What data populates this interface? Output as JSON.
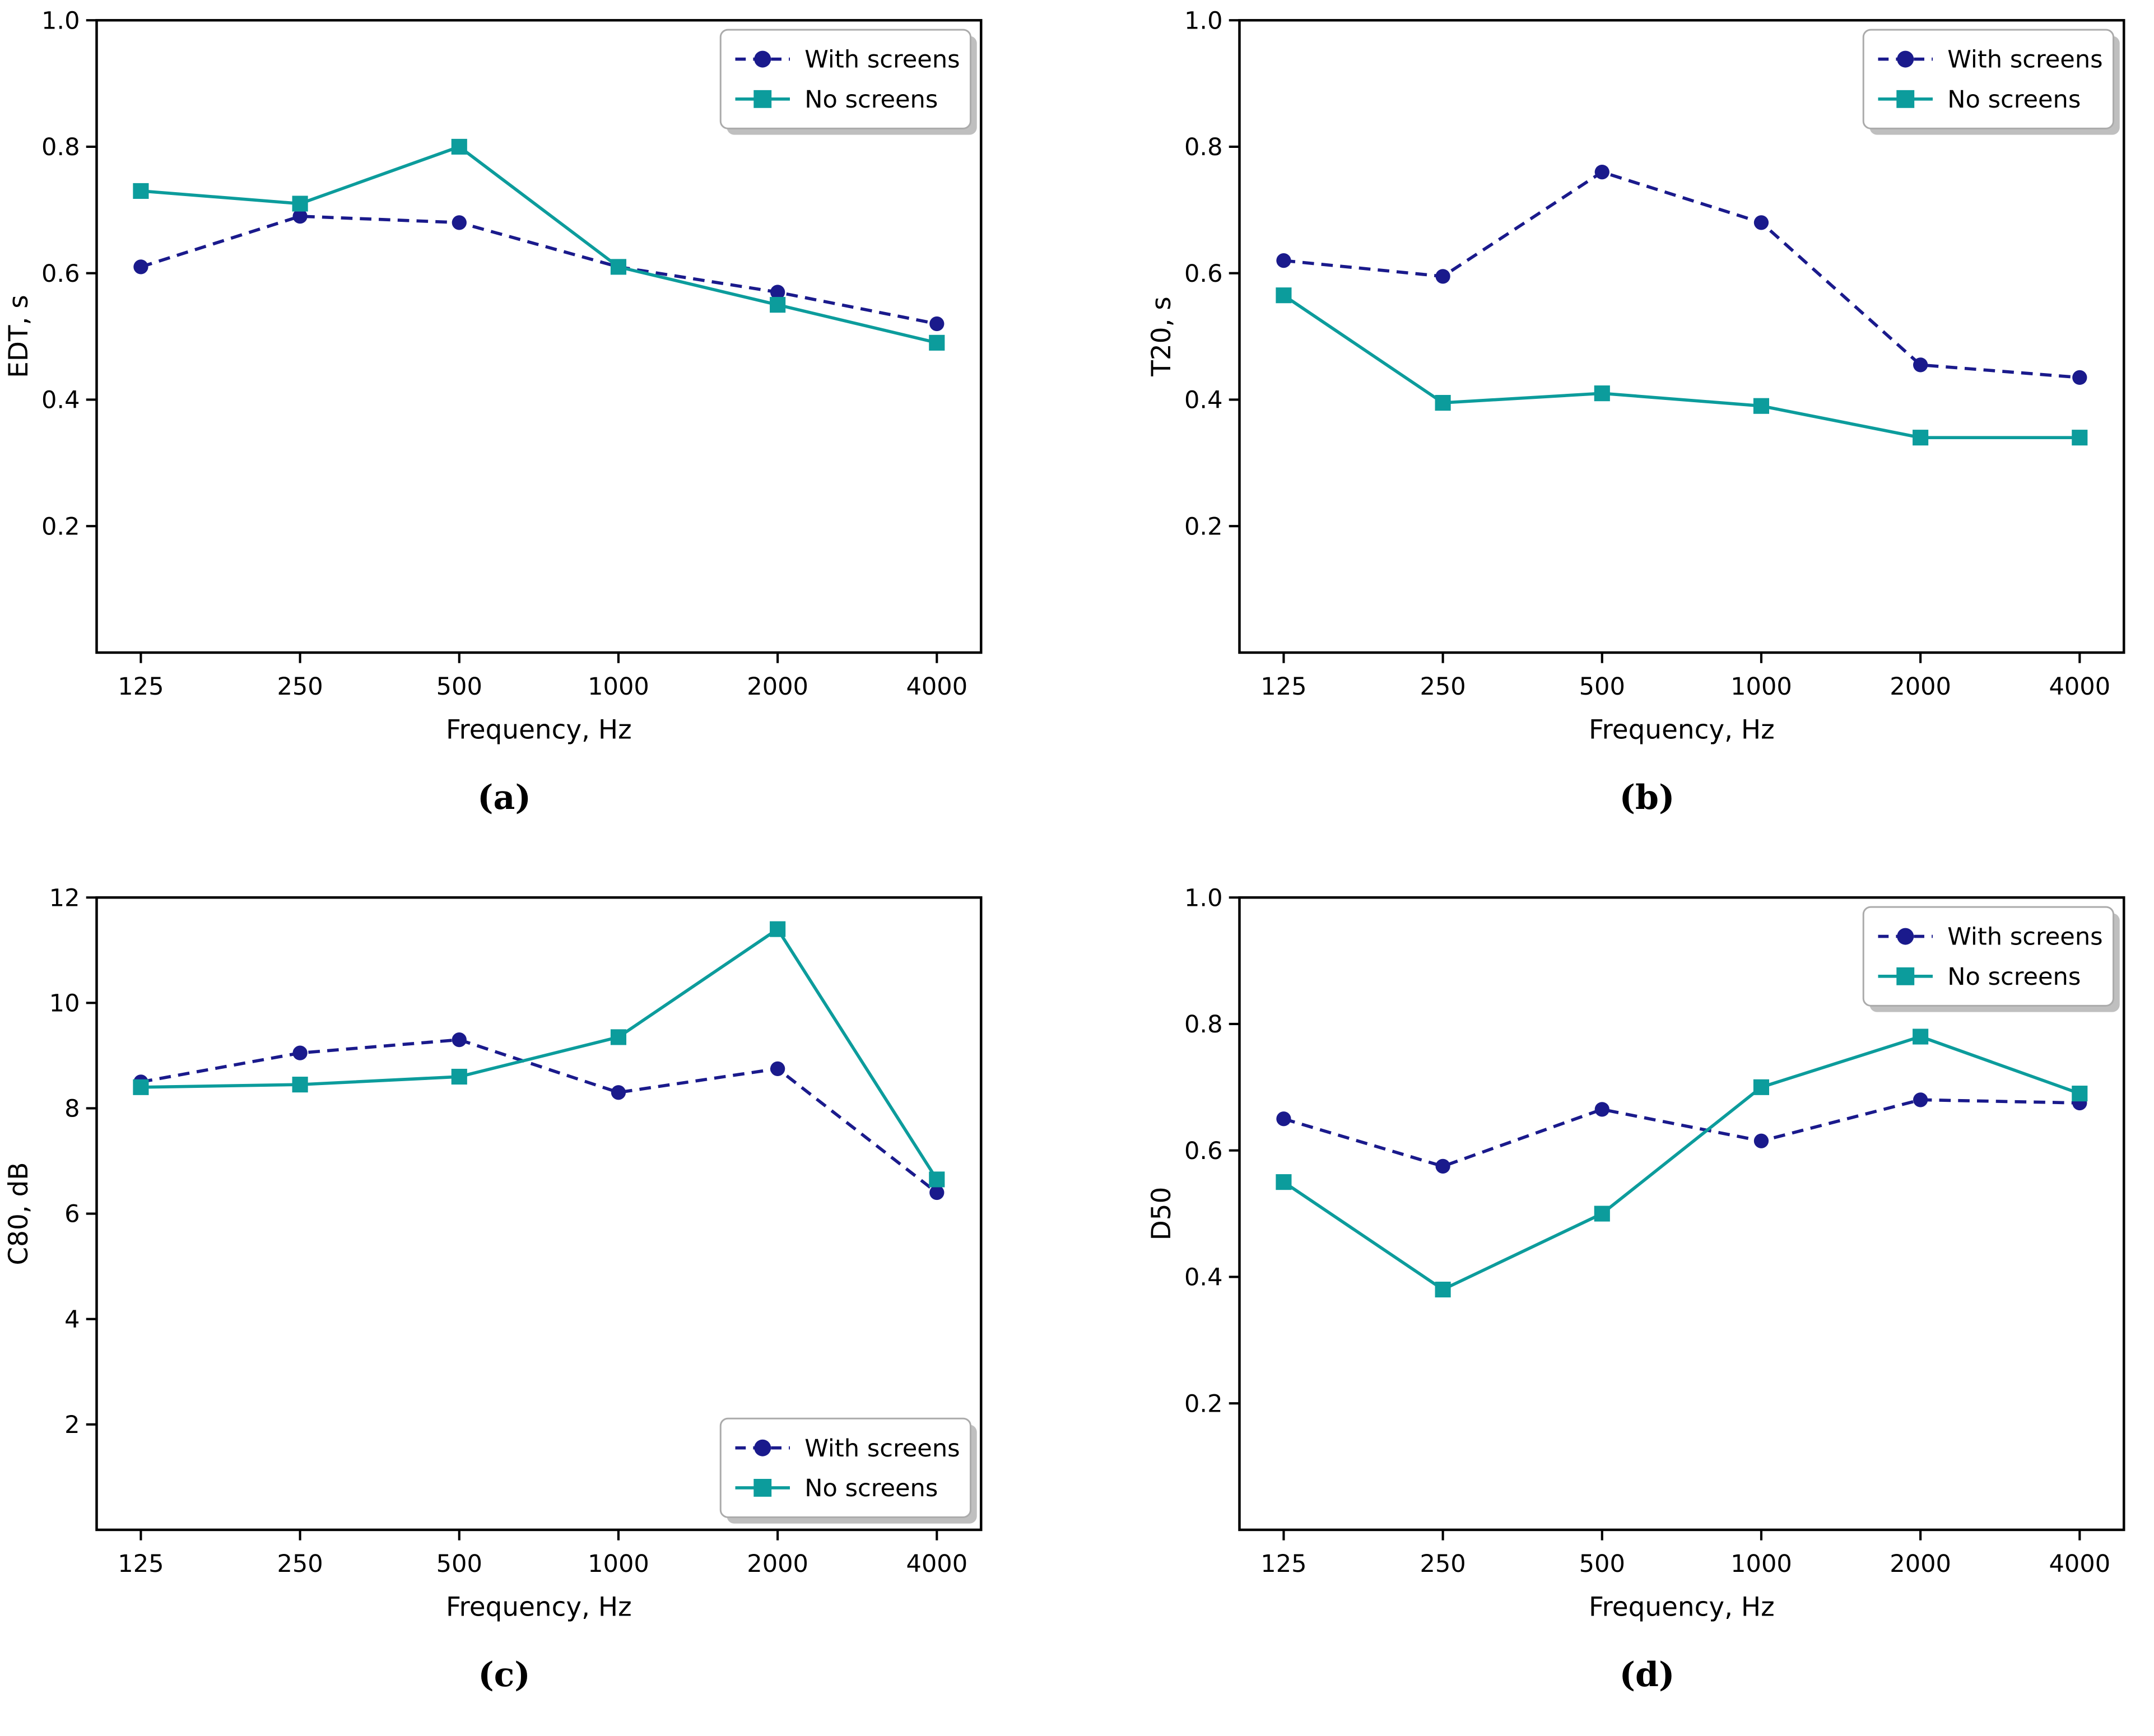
{
  "page": {
    "background": "#ffffff"
  },
  "colors": {
    "axis": "#000000",
    "text": "#000000",
    "with_screens": "#1a1a8c",
    "no_screens": "#0c9c9c",
    "legend_bg": "#ffffff",
    "legend_border": "#ababab",
    "legend_shadow": "#8a8a8a"
  },
  "legend_labels": {
    "with_screens": "With screens",
    "no_screens": "No screens"
  },
  "chart_data": [
    {
      "id": "a",
      "type": "line",
      "caption": "(a)",
      "xlabel": "Frequency, Hz",
      "ylabel": "EDT, s",
      "x_categories": [
        "125",
        "250",
        "500",
        "1000",
        "2000",
        "4000"
      ],
      "ylim": [
        0,
        1.0
      ],
      "yticks": [
        "0.2",
        "0.4",
        "0.6",
        "0.8",
        "1.0"
      ],
      "grid": false,
      "legend_position": "top-right",
      "series": [
        {
          "name": "With screens",
          "color_key": "with_screens",
          "line": "dashed",
          "marker": "circle",
          "values": [
            0.61,
            0.69,
            0.68,
            0.61,
            0.57,
            0.52
          ]
        },
        {
          "name": "No screens",
          "color_key": "no_screens",
          "line": "solid",
          "marker": "square",
          "values": [
            0.73,
            0.71,
            0.8,
            0.61,
            0.55,
            0.49
          ]
        }
      ]
    },
    {
      "id": "b",
      "type": "line",
      "caption": "(b)",
      "xlabel": "Frequency, Hz",
      "ylabel": "T20, s",
      "x_categories": [
        "125",
        "250",
        "500",
        "1000",
        "2000",
        "4000"
      ],
      "ylim": [
        0,
        1.0
      ],
      "yticks": [
        "0.2",
        "0.4",
        "0.6",
        "0.8",
        "1.0"
      ],
      "grid": false,
      "legend_position": "top-right",
      "series": [
        {
          "name": "With screens",
          "color_key": "with_screens",
          "line": "dashed",
          "marker": "circle",
          "values": [
            0.62,
            0.595,
            0.76,
            0.68,
            0.455,
            0.435
          ]
        },
        {
          "name": "No screens",
          "color_key": "no_screens",
          "line": "solid",
          "marker": "square",
          "values": [
            0.565,
            0.395,
            0.41,
            0.39,
            0.34,
            0.34
          ]
        }
      ]
    },
    {
      "id": "c",
      "type": "line",
      "caption": "(c)",
      "xlabel": "Frequency, Hz",
      "ylabel": "C80, dB",
      "x_categories": [
        "125",
        "250",
        "500",
        "1000",
        "2000",
        "4000"
      ],
      "ylim": [
        0,
        12
      ],
      "yticks": [
        "2",
        "4",
        "6",
        "8",
        "10",
        "12"
      ],
      "grid": false,
      "legend_position": "bottom-right",
      "series": [
        {
          "name": "With screens",
          "color_key": "with_screens",
          "line": "dashed",
          "marker": "circle",
          "values": [
            8.5,
            9.05,
            9.3,
            8.3,
            8.75,
            6.4
          ]
        },
        {
          "name": "No screens",
          "color_key": "no_screens",
          "line": "solid",
          "marker": "square",
          "values": [
            8.4,
            8.45,
            8.6,
            9.35,
            11.4,
            6.65
          ]
        }
      ]
    },
    {
      "id": "d",
      "type": "line",
      "caption": "(d)",
      "xlabel": "Frequency, Hz",
      "ylabel": "D50",
      "x_categories": [
        "125",
        "250",
        "500",
        "1000",
        "2000",
        "4000"
      ],
      "ylim": [
        0,
        1.0
      ],
      "yticks": [
        "0.2",
        "0.4",
        "0.6",
        "0.8",
        "1.0"
      ],
      "grid": false,
      "legend_position": "top-right",
      "series": [
        {
          "name": "With screens",
          "color_key": "with_screens",
          "line": "dashed",
          "marker": "circle",
          "values": [
            0.65,
            0.575,
            0.665,
            0.615,
            0.68,
            0.675
          ]
        },
        {
          "name": "No screens",
          "color_key": "no_screens",
          "line": "solid",
          "marker": "square",
          "values": [
            0.55,
            0.38,
            0.5,
            0.7,
            0.78,
            0.69
          ]
        }
      ]
    }
  ]
}
